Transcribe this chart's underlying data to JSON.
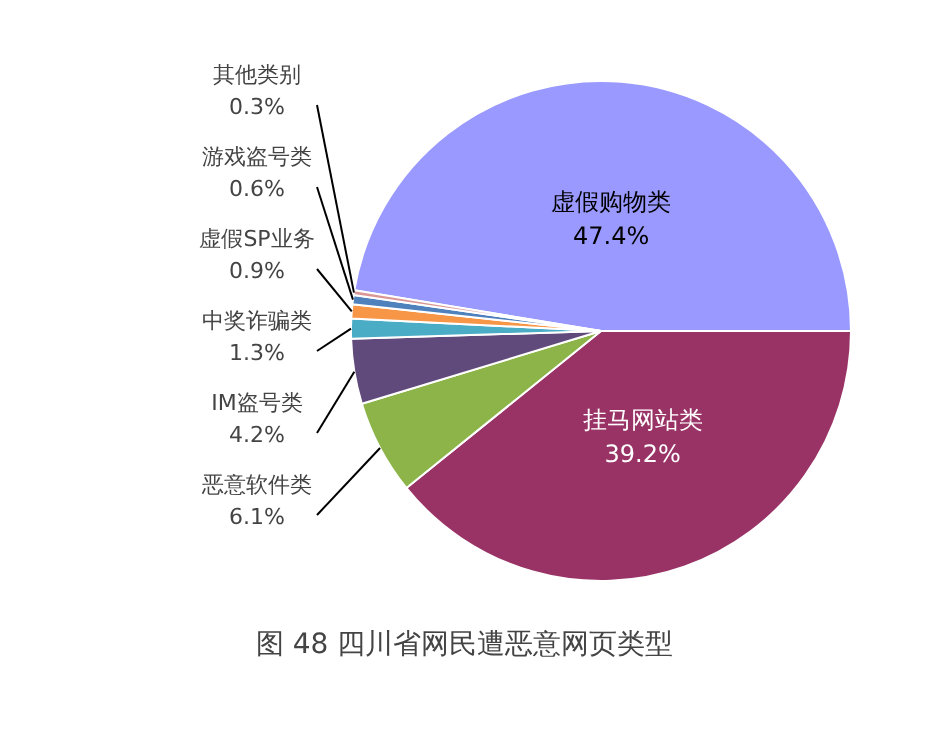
{
  "chart_data": {
    "type": "pie",
    "title": "图 48  四川省网民遭恶意网页类型",
    "categories": [
      "虚假购物类",
      "挂马网站类",
      "恶意软件类",
      "IM盗号类",
      "中奖诈骗类",
      "虚假SP业务",
      "游戏盗号类",
      "其他类别"
    ],
    "values": [
      47.4,
      39.2,
      6.1,
      4.2,
      1.3,
      0.9,
      0.6,
      0.3
    ],
    "value_labels": [
      "47.4%",
      "39.2%",
      "6.1%",
      "4.2%",
      "1.3%",
      "0.9%",
      "0.6%",
      "0.3%"
    ],
    "colors": [
      "#9999ff",
      "#993366",
      "#8cb448",
      "#604a7b",
      "#4bacc6",
      "#f79646",
      "#4f81bd",
      "#d99694"
    ]
  }
}
